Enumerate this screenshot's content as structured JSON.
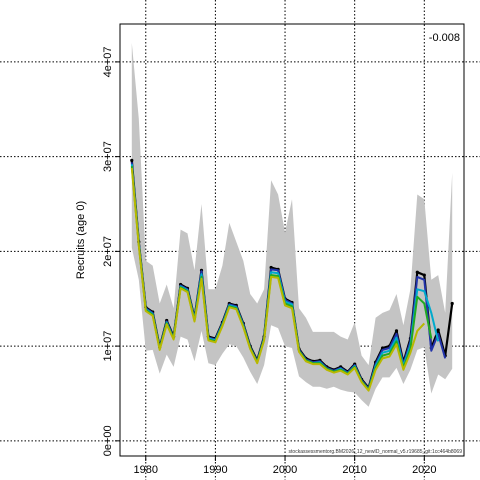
{
  "chart_data": {
    "type": "line",
    "title": "",
    "xlabel": "",
    "ylabel": "Recruits (age 0)",
    "annotation": "-0.008",
    "footnote": "stockassessmentorg.BM2026_12_newID_normal_v5.r19685_git:1cc464b8069",
    "xlim": [
      1976.3,
      2025.7
    ],
    "ylim": [
      -1600000,
      44000000
    ],
    "x_ticks": [
      1980,
      1990,
      2000,
      2010,
      2020
    ],
    "x_tick_labels": [
      "1980",
      "1990",
      "2000",
      "2010",
      "2020"
    ],
    "y_ticks": [
      0,
      10000000,
      20000000,
      30000000,
      40000000
    ],
    "y_tick_labels": [
      "0e+00",
      "1e+07",
      "2e+07",
      "3e+07",
      "4e+07"
    ],
    "grid": true,
    "confidence_band": {
      "x": [
        1978,
        1979,
        1980,
        1981,
        1982,
        1983,
        1984,
        1985,
        1986,
        1987,
        1988,
        1989,
        1990,
        1991,
        1992,
        1993,
        1994,
        1995,
        1996,
        1997,
        1998,
        1999,
        2000,
        2001,
        2002,
        2003,
        2004,
        2005,
        2006,
        2007,
        2008,
        2009,
        2010,
        2011,
        2012,
        2013,
        2014,
        2015,
        2016,
        2017,
        2018,
        2019,
        2020,
        2021,
        2022,
        2023,
        2024
      ],
      "lower": [
        20400000,
        17000000,
        9500000,
        9600000,
        7100000,
        9100000,
        7800000,
        11000000,
        10700000,
        8400000,
        11600000,
        8200000,
        8000000,
        9200000,
        10200000,
        10000000,
        8800000,
        7300000,
        6000000,
        8000000,
        12200000,
        11900000,
        10000000,
        9800000,
        6800000,
        6200000,
        5700000,
        5700000,
        5500000,
        5700000,
        5400000,
        5200000,
        5100000,
        4300000,
        3600000,
        5500000,
        6700000,
        6700000,
        7700000,
        6000000,
        7500000,
        9600000,
        9900000,
        5000000,
        7000000,
        6500000,
        7600000
      ],
      "upper": [
        42000000,
        34000000,
        19000000,
        18500000,
        14500000,
        16500000,
        14000000,
        22300000,
        21900000,
        18000000,
        25000000,
        16000000,
        16000000,
        18500000,
        23000000,
        21000000,
        19000000,
        15500000,
        14500000,
        16000000,
        27500000,
        26000000,
        22000000,
        25500000,
        14000000,
        13000000,
        11500000,
        11500000,
        11500000,
        11500000,
        11000000,
        10700000,
        12500000,
        9000000,
        8000000,
        13000000,
        13500000,
        13800000,
        15500000,
        12200000,
        16000000,
        26000000,
        25500000,
        17000000,
        17500000,
        13500000,
        28300000
      ]
    },
    "series": [
      {
        "color": "#000000",
        "x": [
          1978,
          1979,
          1980,
          1981,
          1982,
          1983,
          1984,
          1985,
          1986,
          1987,
          1988,
          1989,
          1990,
          1991,
          1992,
          1993,
          1994,
          1995,
          1996,
          1997,
          1998,
          1999,
          2000,
          2001,
          2002,
          2003,
          2004,
          2005,
          2006,
          2007,
          2008,
          2009,
          2010,
          2011,
          2012,
          2013,
          2014,
          2015,
          2016,
          2017,
          2018,
          2019,
          2020,
          2021,
          2022,
          2023,
          2024
        ],
        "y": [
          29600000,
          21000000,
          14100000,
          13600000,
          9900000,
          12700000,
          11000000,
          16500000,
          16100000,
          13000000,
          18000000,
          11000000,
          10800000,
          12500000,
          14500000,
          14300000,
          12400000,
          10000000,
          8500000,
          11000000,
          18300000,
          18100000,
          15000000,
          14600000,
          9700000,
          8700000,
          8400000,
          8500000,
          7800000,
          7500000,
          7800000,
          7300000,
          8100000,
          6500000,
          5600000,
          8300000,
          9800000,
          10000000,
          11600000,
          8300000,
          10800000,
          17800000,
          17500000,
          9800000,
          11700000,
          9000000,
          14500000
        ]
      },
      {
        "color": "#2233aa",
        "x": [
          1978,
          1979,
          1980,
          1981,
          1982,
          1983,
          1984,
          1985,
          1986,
          1987,
          1988,
          1989,
          1990,
          1991,
          1992,
          1993,
          1994,
          1995,
          1996,
          1997,
          1998,
          1999,
          2000,
          2001,
          2002,
          2003,
          2004,
          2005,
          2006,
          2007,
          2008,
          2009,
          2010,
          2011,
          2012,
          2013,
          2014,
          2015,
          2016,
          2017,
          2018,
          2019,
          2020,
          2021,
          2022,
          2023
        ],
        "y": [
          29400000,
          20900000,
          14000000,
          13500000,
          9800000,
          12600000,
          10900000,
          16400000,
          16000000,
          12900000,
          17900000,
          10900000,
          10700000,
          12400000,
          14400000,
          14200000,
          12300000,
          9900000,
          8400000,
          10900000,
          18100000,
          18000000,
          14900000,
          14500000,
          9600000,
          8600000,
          8300000,
          8400000,
          7700000,
          7400000,
          7700000,
          7200000,
          8000000,
          6400000,
          5500000,
          8100000,
          9600000,
          9800000,
          11300000,
          8100000,
          10500000,
          17300000,
          17000000,
          9500000,
          11300000,
          8700000
        ]
      },
      {
        "color": "#00aacc",
        "x": [
          1978,
          1979,
          1980,
          1981,
          1982,
          1983,
          1984,
          1985,
          1986,
          1987,
          1988,
          1989,
          1990,
          1991,
          1992,
          1993,
          1994,
          1995,
          1996,
          1997,
          1998,
          1999,
          2000,
          2001,
          2002,
          2003,
          2004,
          2005,
          2006,
          2007,
          2008,
          2009,
          2010,
          2011,
          2012,
          2013,
          2014,
          2015,
          2016,
          2017,
          2018,
          2019,
          2020,
          2021,
          2022
        ],
        "y": [
          29200000,
          20800000,
          13900000,
          13400000,
          9700000,
          12500000,
          10800000,
          16300000,
          15900000,
          12800000,
          17600000,
          10800000,
          10600000,
          12300000,
          14300000,
          14100000,
          12200000,
          9800000,
          8300000,
          10800000,
          17800000,
          17700000,
          14700000,
          14400000,
          9500000,
          8500000,
          8200000,
          8300000,
          7600000,
          7300000,
          7600000,
          7100000,
          7900000,
          6300000,
          5400000,
          7900000,
          9300000,
          9500000,
          10900000,
          7900000,
          10100000,
          16000000,
          15800000,
          13500000,
          10500000
        ]
      },
      {
        "color": "#22aa22",
        "x": [
          1978,
          1979,
          1980,
          1981,
          1982,
          1983,
          1984,
          1985,
          1986,
          1987,
          1988,
          1989,
          1990,
          1991,
          1992,
          1993,
          1994,
          1995,
          1996,
          1997,
          1998,
          1999,
          2000,
          2001,
          2002,
          2003,
          2004,
          2005,
          2006,
          2007,
          2008,
          2009,
          2010,
          2011,
          2012,
          2013,
          2014,
          2015,
          2016,
          2017,
          2018,
          2019,
          2020,
          2021
        ],
        "y": [
          29000000,
          20700000,
          13800000,
          13300000,
          9700000,
          12400000,
          10800000,
          16200000,
          15800000,
          12700000,
          17300000,
          10700000,
          10500000,
          12200000,
          14200000,
          14000000,
          12100000,
          9800000,
          8300000,
          10700000,
          17500000,
          17400000,
          14500000,
          14200000,
          9500000,
          8500000,
          8200000,
          8200000,
          7600000,
          7300000,
          7500000,
          7100000,
          7800000,
          6300000,
          5400000,
          7700000,
          9000000,
          9200000,
          10500000,
          7700000,
          9700000,
          15200000,
          14500000,
          10800000
        ]
      },
      {
        "color": "#b8b800",
        "x": [
          1978,
          1979,
          1980,
          1981,
          1982,
          1983,
          1984,
          1985,
          1986,
          1987,
          1988,
          1989,
          1990,
          1991,
          1992,
          1993,
          1994,
          1995,
          1996,
          1997,
          1998,
          1999,
          2000,
          2001,
          2002,
          2003,
          2004,
          2005,
          2006,
          2007,
          2008,
          2009,
          2010,
          2011,
          2012,
          2013,
          2014,
          2015,
          2016,
          2017,
          2018,
          2019,
          2020
        ],
        "y": [
          28800000,
          20600000,
          13700000,
          13200000,
          9600000,
          12300000,
          10700000,
          16100000,
          15700000,
          12600000,
          17100000,
          10600000,
          10400000,
          12100000,
          14100000,
          13900000,
          12000000,
          9700000,
          8200000,
          10600000,
          17300000,
          17200000,
          14300000,
          14000000,
          9400000,
          8400000,
          8100000,
          8100000,
          7500000,
          7200000,
          7400000,
          7000000,
          7700000,
          6200000,
          5300000,
          7500000,
          8700000,
          8900000,
          10200000,
          7500000,
          9300000,
          11600000,
          12400000
        ]
      }
    ]
  }
}
